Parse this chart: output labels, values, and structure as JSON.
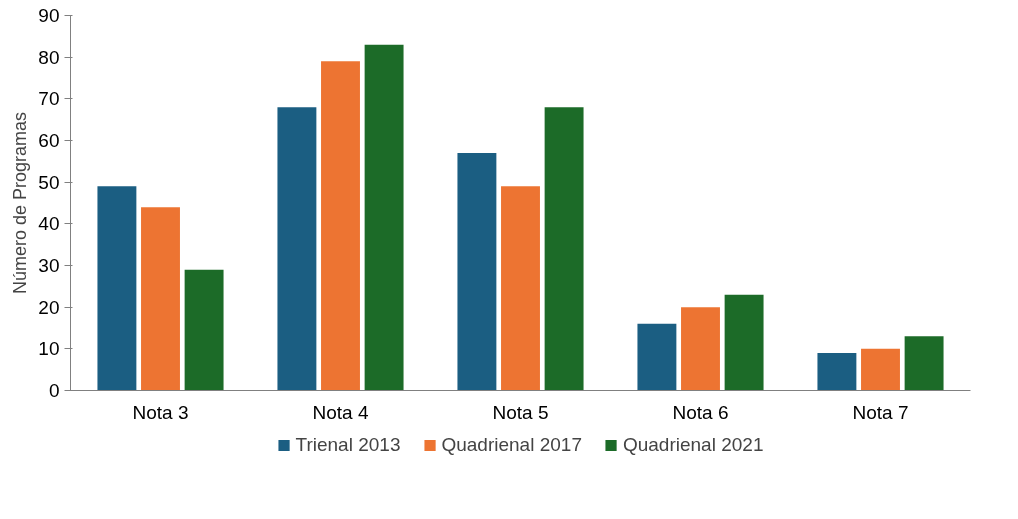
{
  "chart_data": {
    "type": "bar",
    "ylabel": "Número de Programas",
    "categories": [
      "Nota 3",
      "Nota 4",
      "Nota 5",
      "Nota 6",
      "Nota 7"
    ],
    "series": [
      {
        "name": "Trienal 2013",
        "color": "#1b5e82",
        "values": [
          49,
          68,
          57,
          16,
          9
        ]
      },
      {
        "name": "Quadrienal 2017",
        "color": "#ed7432",
        "values": [
          44,
          79,
          49,
          20,
          10
        ]
      },
      {
        "name": "Quadrienal 2021",
        "color": "#1c6b28",
        "values": [
          29,
          83,
          68,
          23,
          13
        ]
      }
    ],
    "ylim": [
      0,
      90
    ],
    "yticks": [
      0,
      10,
      20,
      30,
      40,
      50,
      60,
      70,
      80,
      90
    ],
    "grid": false,
    "legend": "bottom"
  }
}
